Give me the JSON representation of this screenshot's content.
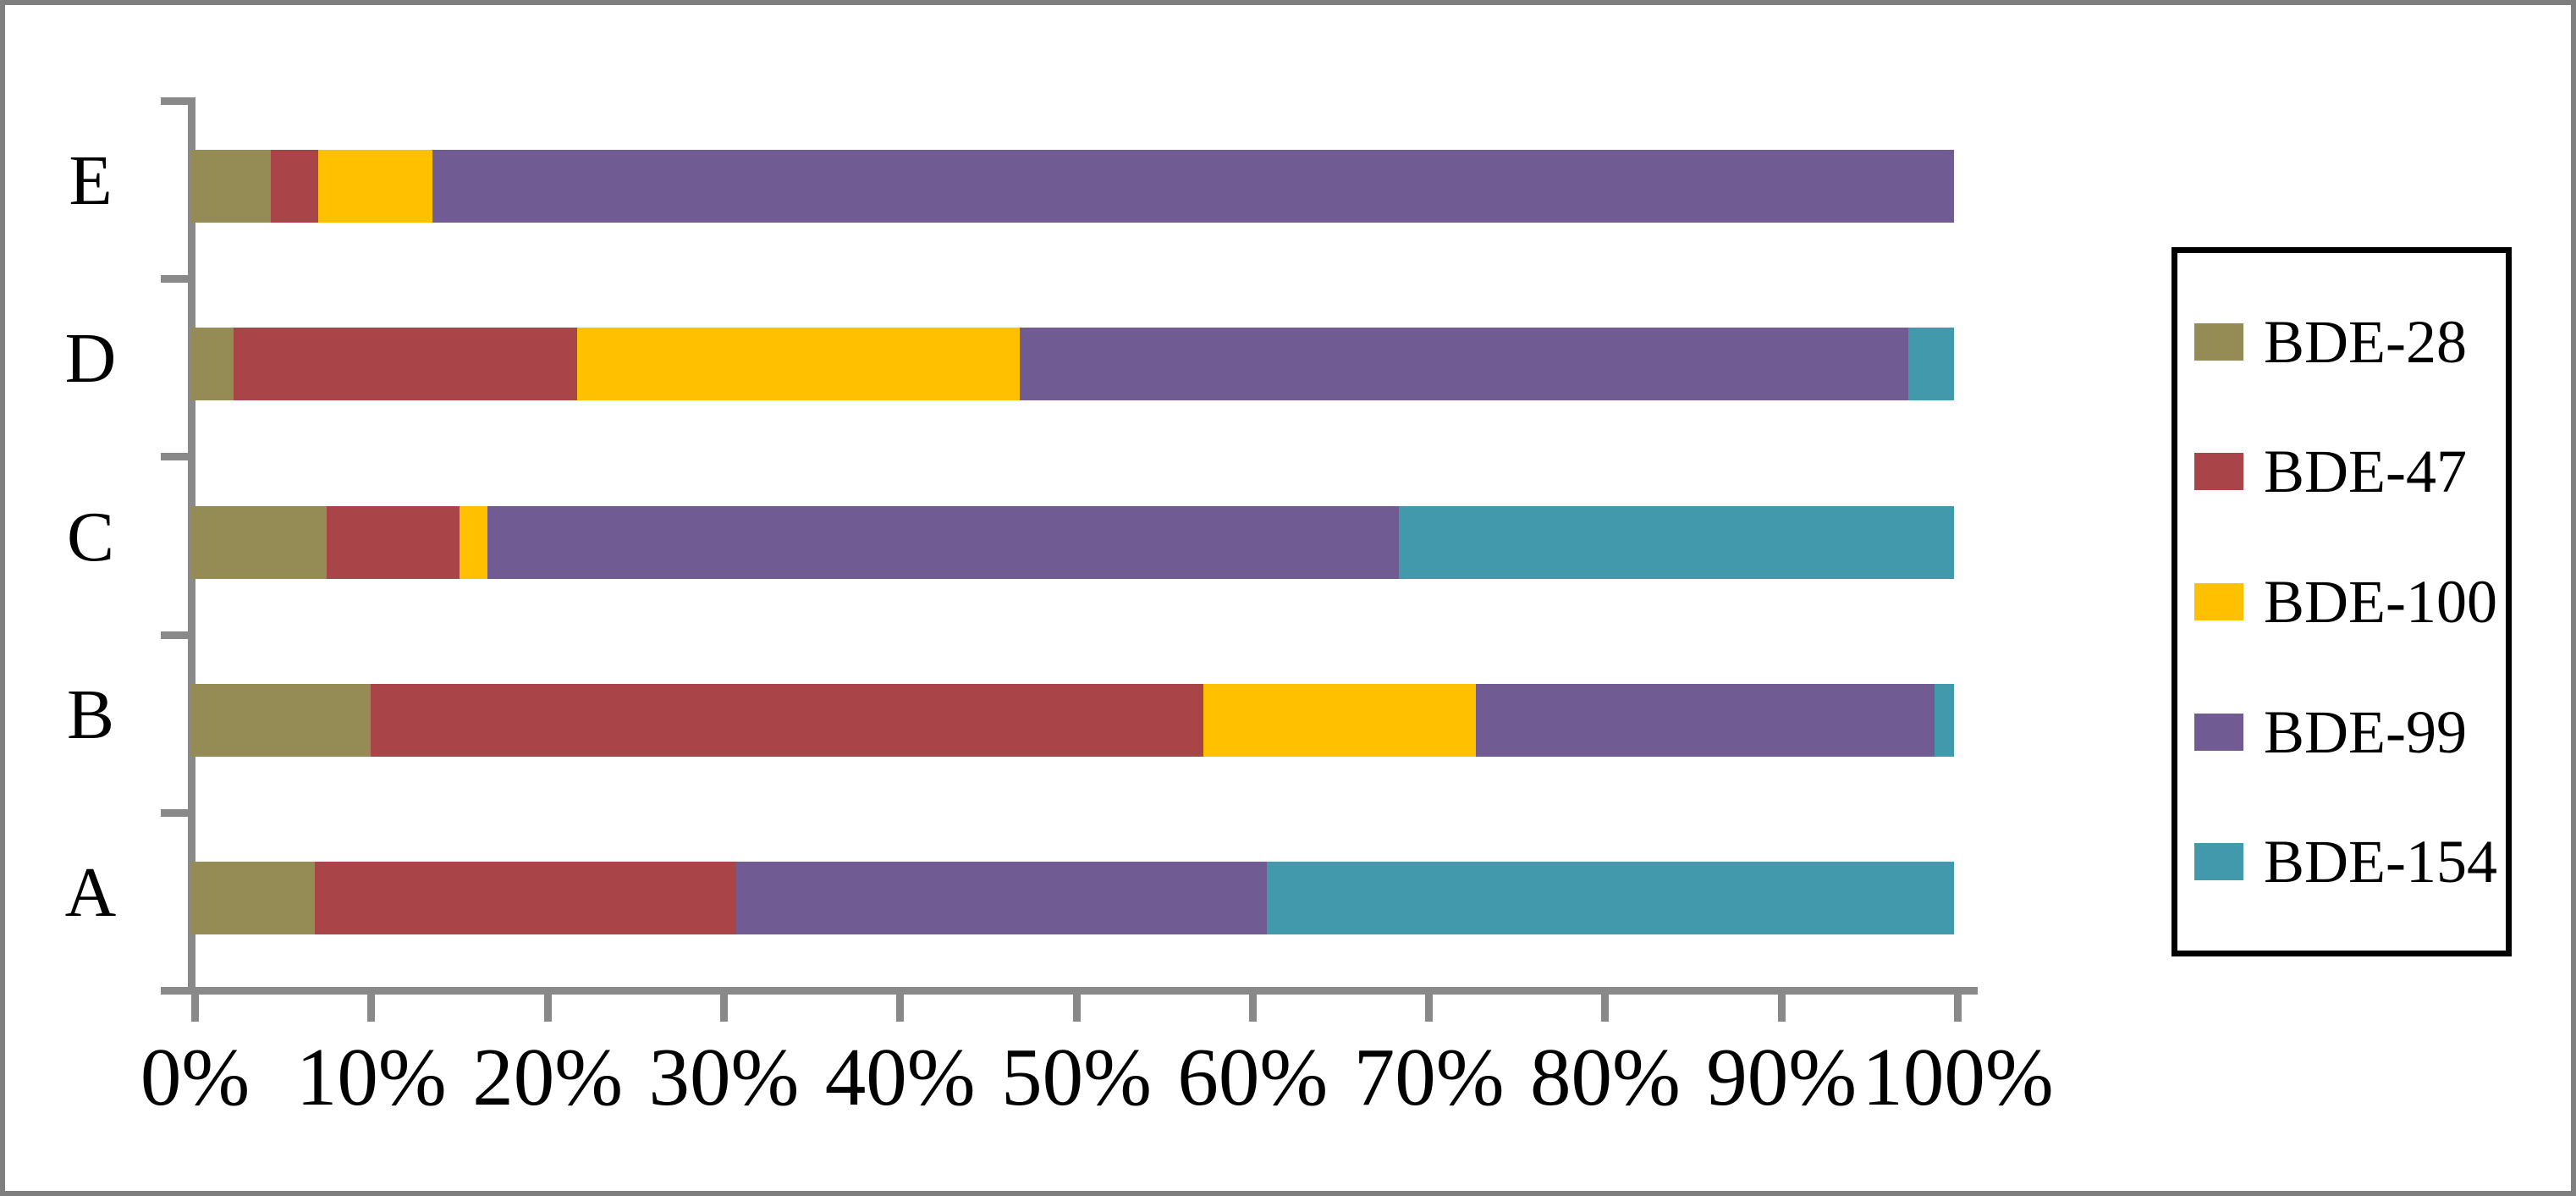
{
  "figure": {
    "frame_color": "#7f7f7f",
    "axis_color": "#898989",
    "background": "#ffffff",
    "legend_border_color": "#000000"
  },
  "chart_data": {
    "type": "bar",
    "orientation": "horizontal-stacked",
    "title": "",
    "xlabel": "",
    "ylabel": "",
    "unit": "%",
    "grid": false,
    "category_order": "top-to-bottom",
    "categories": [
      "E",
      "D",
      "C",
      "B",
      "A"
    ],
    "series": [
      {
        "name": "BDE-28",
        "color": "#948B55",
        "values": [
          4.5,
          2.4,
          7.7,
          10.2,
          7.0
        ]
      },
      {
        "name": "BDE-47",
        "color": "#A94448",
        "values": [
          2.7,
          19.5,
          7.5,
          47.2,
          23.9
        ]
      },
      {
        "name": "BDE-100",
        "color": "#FFC000",
        "values": [
          6.5,
          25.1,
          1.6,
          15.5,
          0
        ]
      },
      {
        "name": "BDE-99",
        "color": "#705B93",
        "values": [
          86.3,
          50.4,
          51.7,
          26.0,
          30.1
        ]
      },
      {
        "name": "BDE-154",
        "color": "#4299AC",
        "values": [
          0,
          2.6,
          31.5,
          1.1,
          39.0
        ]
      }
    ],
    "x_axis": {
      "min": 0,
      "max": 100,
      "tick_labels": [
        "0%",
        "10%",
        "20%",
        "30%",
        "40%",
        "50%",
        "60%",
        "70%",
        "80%",
        "90%",
        "100%"
      ]
    },
    "legend": {
      "position": "right",
      "entries": [
        "BDE-28",
        "BDE-47",
        "BDE-100",
        "BDE-99",
        "BDE-154"
      ]
    }
  }
}
